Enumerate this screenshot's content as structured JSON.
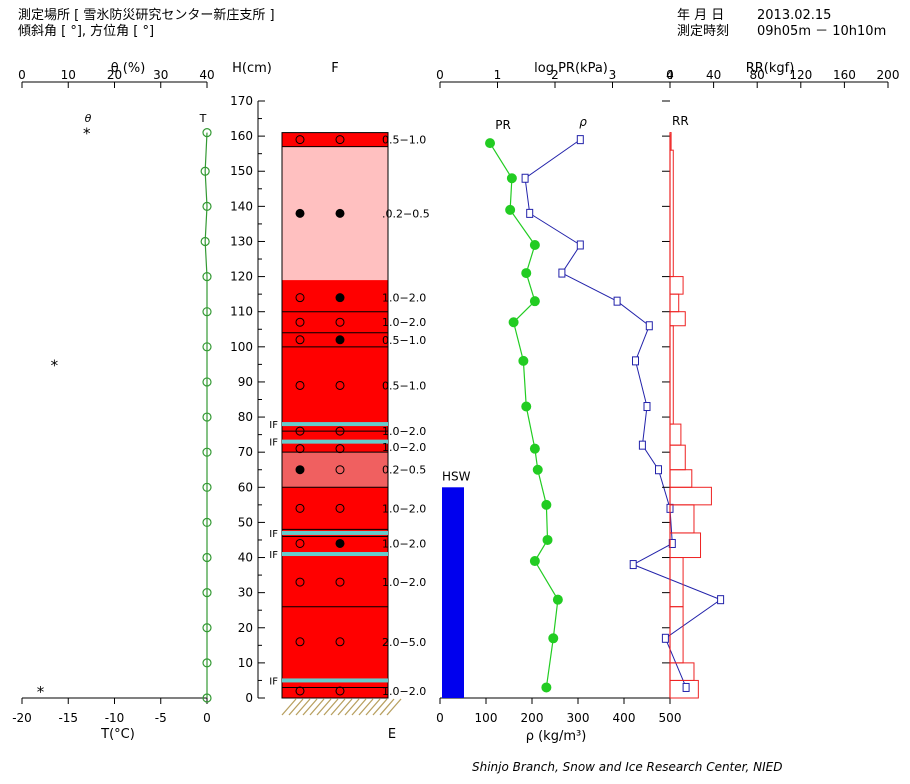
{
  "header": {
    "location": "測定場所 [ 雪氷防災研究センター新庄支所 ]",
    "angles": "傾斜角 [ °], 方位角 [ °]",
    "date_label": "年 月 日",
    "date": "2013.02.15",
    "time_label": "測定時刻",
    "time": "09h05m － 10h10m"
  },
  "credit": "Shinjo Branch, Snow and Ice Research Center, NIED",
  "colors": {
    "grain_dark": "#ff0000",
    "grain_light": "#ffc0c0",
    "grain_mid": "#f06060",
    "ice_line": "#66cccc",
    "temp": "#339933",
    "pr": "#22cc22",
    "rho": "#2222aa",
    "rr": "#ee2222",
    "hsw": "#0000ee"
  },
  "chart_data": {
    "type": "snow-pit profile",
    "height_axis": {
      "label": "H(cm)",
      "range": [
        0,
        170
      ],
      "ticks": [
        0,
        10,
        20,
        30,
        40,
        50,
        60,
        70,
        80,
        90,
        100,
        110,
        120,
        130,
        140,
        150,
        160,
        170
      ]
    },
    "theta_axis": {
      "label": "θ (%)",
      "ticks": [
        0,
        10,
        20,
        30,
        40
      ],
      "range": [
        0,
        40
      ],
      "series_label": "θ",
      "points": [
        {
          "h": 161,
          "v": 14
        },
        {
          "h": 95,
          "v": 7
        },
        {
          "h": 2,
          "v": 4
        }
      ]
    },
    "temp_axis": {
      "label": "T(°C)",
      "ticks": [
        -20,
        -15,
        -10,
        -5,
        0
      ],
      "range": [
        -20,
        0
      ],
      "series_label": "T",
      "points": [
        {
          "h": 161,
          "v": 0
        },
        {
          "h": 150,
          "v": -0.2
        },
        {
          "h": 140,
          "v": 0
        },
        {
          "h": 130,
          "v": -0.2
        },
        {
          "h": 120,
          "v": 0
        },
        {
          "h": 110,
          "v": 0
        },
        {
          "h": 100,
          "v": 0
        },
        {
          "h": 90,
          "v": 0
        },
        {
          "h": 80,
          "v": 0
        },
        {
          "h": 70,
          "v": 0
        },
        {
          "h": 60,
          "v": 0
        },
        {
          "h": 50,
          "v": 0
        },
        {
          "h": 40,
          "v": 0
        },
        {
          "h": 30,
          "v": 0
        },
        {
          "h": 20,
          "v": 0
        },
        {
          "h": 10,
          "v": 0
        },
        {
          "h": 0,
          "v": 0
        }
      ]
    },
    "grain_column": {
      "label_top": "F",
      "label_bottom": "E",
      "layers": [
        {
          "top": 161,
          "bottom": 157,
          "type": "dark"
        },
        {
          "top": 157,
          "bottom": 119,
          "type": "light"
        },
        {
          "top": 119,
          "bottom": 70,
          "type": "dark"
        },
        {
          "top": 70,
          "bottom": 60,
          "type": "mid"
        },
        {
          "top": 60,
          "bottom": 0,
          "type": "dark"
        }
      ],
      "boundaries": [
        157,
        110,
        104,
        100,
        78,
        76,
        73,
        70,
        60,
        48,
        46,
        41,
        26,
        5,
        3
      ],
      "ice_layers": [
        {
          "h": 78,
          "label": "IF"
        },
        {
          "h": 73,
          "label": "IF"
        },
        {
          "h": 47,
          "label": "IF"
        },
        {
          "h": 41,
          "label": "IF"
        },
        {
          "h": 5,
          "label": "IF"
        }
      ],
      "markers": [
        {
          "h": 159,
          "l": "o",
          "r": "o"
        },
        {
          "h": 138,
          "l": "f",
          "r": "f"
        },
        {
          "h": 114,
          "l": "o",
          "r": "f"
        },
        {
          "h": 107,
          "l": "o",
          "r": "o"
        },
        {
          "h": 102,
          "l": "o",
          "r": "f"
        },
        {
          "h": 89,
          "l": "o",
          "r": "o"
        },
        {
          "h": 76,
          "l": "o",
          "r": "o"
        },
        {
          "h": 71,
          "l": "o",
          "r": "o"
        },
        {
          "h": 65,
          "l": "f",
          "r": "o"
        },
        {
          "h": 54,
          "l": "o",
          "r": "o"
        },
        {
          "h": 44,
          "l": "o",
          "r": "f"
        },
        {
          "h": 33,
          "l": "o",
          "r": "o"
        },
        {
          "h": 16,
          "l": "o",
          "r": "o"
        },
        {
          "h": 2,
          "l": "o",
          "r": "o"
        }
      ]
    },
    "grain_size_labels": [
      {
        "h": 159,
        "text": "0.5−1.0"
      },
      {
        "h": 138,
        "text": ".0.2−0.5"
      },
      {
        "h": 114,
        "text": "1.0−2.0"
      },
      {
        "h": 107,
        "text": "1.0−2.0"
      },
      {
        "h": 102,
        "text": "0.5−1.0"
      },
      {
        "h": 89,
        "text": "0.5−1.0"
      },
      {
        "h": 76,
        "text": "1.0−2.0"
      },
      {
        "h": 71.5,
        "text": "1.0−2.0"
      },
      {
        "h": 65,
        "text": "0.2−0.5"
      },
      {
        "h": 54,
        "text": "1.0−2.0"
      },
      {
        "h": 44,
        "text": "1.0−2.0"
      },
      {
        "h": 33,
        "text": "1.0−2.0"
      },
      {
        "h": 16,
        "text": "2.0−5.0"
      },
      {
        "h": 2,
        "text": "1.0−2.0"
      }
    ],
    "logpr_axis": {
      "label": "log PR(kPa)",
      "ticks": [
        0,
        1,
        2,
        3,
        4
      ],
      "range": [
        0,
        4
      ],
      "series_label": "PR",
      "points": [
        {
          "h": 158,
          "v": 0.87
        },
        {
          "h": 148,
          "v": 1.25
        },
        {
          "h": 139,
          "v": 1.22
        },
        {
          "h": 129,
          "v": 1.65
        },
        {
          "h": 121,
          "v": 1.5
        },
        {
          "h": 113,
          "v": 1.65
        },
        {
          "h": 107,
          "v": 1.28
        },
        {
          "h": 96,
          "v": 1.45
        },
        {
          "h": 83,
          "v": 1.5
        },
        {
          "h": 71,
          "v": 1.65
        },
        {
          "h": 65,
          "v": 1.7
        },
        {
          "h": 55,
          "v": 1.85
        },
        {
          "h": 45,
          "v": 1.87
        },
        {
          "h": 39,
          "v": 1.65
        },
        {
          "h": 28,
          "v": 2.05
        },
        {
          "h": 17,
          "v": 1.97
        },
        {
          "h": 3,
          "v": 1.85
        }
      ]
    },
    "rho_axis": {
      "label": "ρ (kg/m³)",
      "ticks": [
        0,
        100,
        200,
        300,
        400,
        500
      ],
      "range": [
        0,
        500
      ],
      "series_label": "ρ",
      "points": [
        {
          "h": 159,
          "v": 305
        },
        {
          "h": 148,
          "v": 185
        },
        {
          "h": 138,
          "v": 195
        },
        {
          "h": 129,
          "v": 305
        },
        {
          "h": 121,
          "v": 265
        },
        {
          "h": 113,
          "v": 385
        },
        {
          "h": 106,
          "v": 455
        },
        {
          "h": 96,
          "v": 425
        },
        {
          "h": 83,
          "v": 450
        },
        {
          "h": 72,
          "v": 440
        },
        {
          "h": 65,
          "v": 475
        },
        {
          "h": 54,
          "v": 500
        },
        {
          "h": 44,
          "v": 505
        },
        {
          "h": 38,
          "v": 420
        },
        {
          "h": 28,
          "v": 610
        },
        {
          "h": 17,
          "v": 490
        },
        {
          "h": 3,
          "v": 535
        }
      ]
    },
    "rr_axis": {
      "label": "RR(kgf)",
      "ticks": [
        0,
        40,
        80,
        120,
        160,
        200
      ],
      "range": [
        0,
        200
      ],
      "series_label": "RR",
      "bars": [
        {
          "bottom": 156,
          "top": 161,
          "v": 1
        },
        {
          "bottom": 120,
          "top": 156,
          "v": 3
        },
        {
          "bottom": 115,
          "top": 120,
          "v": 12
        },
        {
          "bottom": 110,
          "top": 115,
          "v": 8
        },
        {
          "bottom": 106,
          "top": 110,
          "v": 14
        },
        {
          "bottom": 78,
          "top": 106,
          "v": 3
        },
        {
          "bottom": 72,
          "top": 78,
          "v": 10
        },
        {
          "bottom": 65,
          "top": 72,
          "v": 14
        },
        {
          "bottom": 60,
          "top": 65,
          "v": 20
        },
        {
          "bottom": 55,
          "top": 60,
          "v": 38
        },
        {
          "bottom": 47,
          "top": 55,
          "v": 22
        },
        {
          "bottom": 40,
          "top": 47,
          "v": 28
        },
        {
          "bottom": 26,
          "top": 40,
          "v": 12
        },
        {
          "bottom": 10,
          "top": 26,
          "v": 12
        },
        {
          "bottom": 5,
          "top": 10,
          "v": 22
        },
        {
          "bottom": 0,
          "top": 5,
          "v": 26
        }
      ]
    },
    "hsw": {
      "label": "HSW",
      "value": 60
    }
  }
}
